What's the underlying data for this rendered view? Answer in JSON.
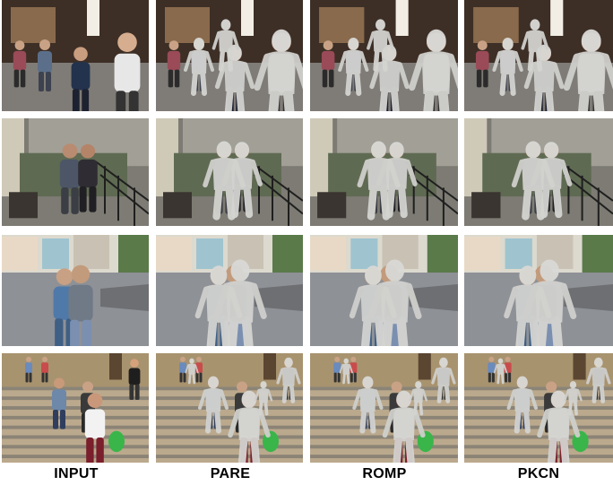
{
  "columns": [
    {
      "label": "INPUT",
      "overlay": false
    },
    {
      "label": "PARE",
      "overlay": true
    },
    {
      "label": "ROMP",
      "overlay": true
    },
    {
      "label": "PKCN",
      "overlay": true
    }
  ],
  "rows": [
    {
      "scene": "shop-street"
    },
    {
      "scene": "courtyard-stairs"
    },
    {
      "scene": "town-square"
    },
    {
      "scene": "church-steps"
    }
  ]
}
